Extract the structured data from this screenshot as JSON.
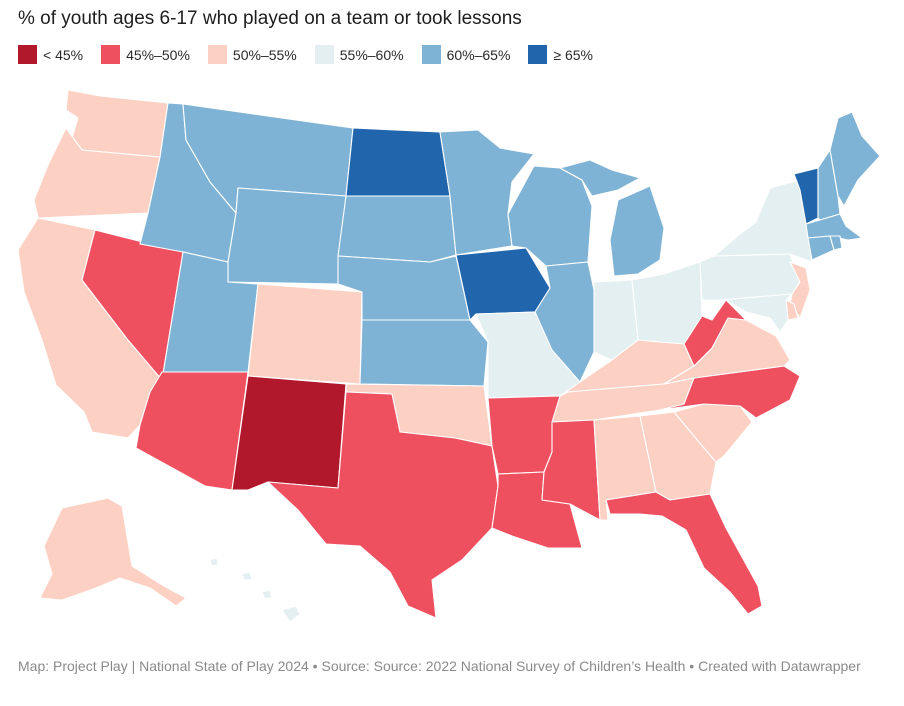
{
  "title": "% of youth ages 6-17 who played on a team or took lessons",
  "legend": [
    {
      "label": "< 45%",
      "color": "#b2182b"
    },
    {
      "label": "45%–50%",
      "color": "#ef5060"
    },
    {
      "label": "50%–55%",
      "color": "#fdd0c4"
    },
    {
      "label": "55%–60%",
      "color": "#e3eff1"
    },
    {
      "label": "60%–65%",
      "color": "#7fb3d5"
    },
    {
      "label": "≥ 65%",
      "color": "#2166ac"
    }
  ],
  "states": {
    "WA": "50%–55%",
    "OR": "50%–55%",
    "CA": "50%–55%",
    "NV": "45%–50%",
    "ID": "60%–65%",
    "MT": "60%–65%",
    "WY": "60%–65%",
    "UT": "60%–65%",
    "CO": "50%–55%",
    "AZ": "45%–50%",
    "NM": "< 45%",
    "ND": "≥ 65%",
    "SD": "60%–65%",
    "NE": "60%–65%",
    "KS": "60%–65%",
    "OK": "50%–55%",
    "TX": "45%–50%",
    "MN": "60%–65%",
    "IA": "≥ 65%",
    "MO": "55%–60%",
    "AR": "45%–50%",
    "LA": "45%–50%",
    "WI": "60%–65%",
    "IL": "60%–65%",
    "MI": "60%–65%",
    "IN": "55%–60%",
    "OH": "55%–60%",
    "KY": "50%–55%",
    "TN": "50%–55%",
    "MS": "45%–50%",
    "AL": "50%–55%",
    "GA": "50%–55%",
    "FL": "45%–50%",
    "SC": "50%–55%",
    "NC": "45%–50%",
    "VA": "50%–55%",
    "WV": "45%–50%",
    "PA": "55%–60%",
    "NY": "55%–60%",
    "NJ": "50%–55%",
    "DE": "50%–55%",
    "MD": "55%–60%",
    "VT": "≥ 65%",
    "NH": "60%–65%",
    "ME": "60%–65%",
    "MA": "60%–65%",
    "CT": "60%–65%",
    "RI": "60%–65%",
    "AK": "50%–55%",
    "HI": "55%–60%"
  },
  "footer": "Map: Project Play | National State of Play 2024 • Source: Source: 2022 National Survey of Children’s Health • Created with Datawrapper"
}
